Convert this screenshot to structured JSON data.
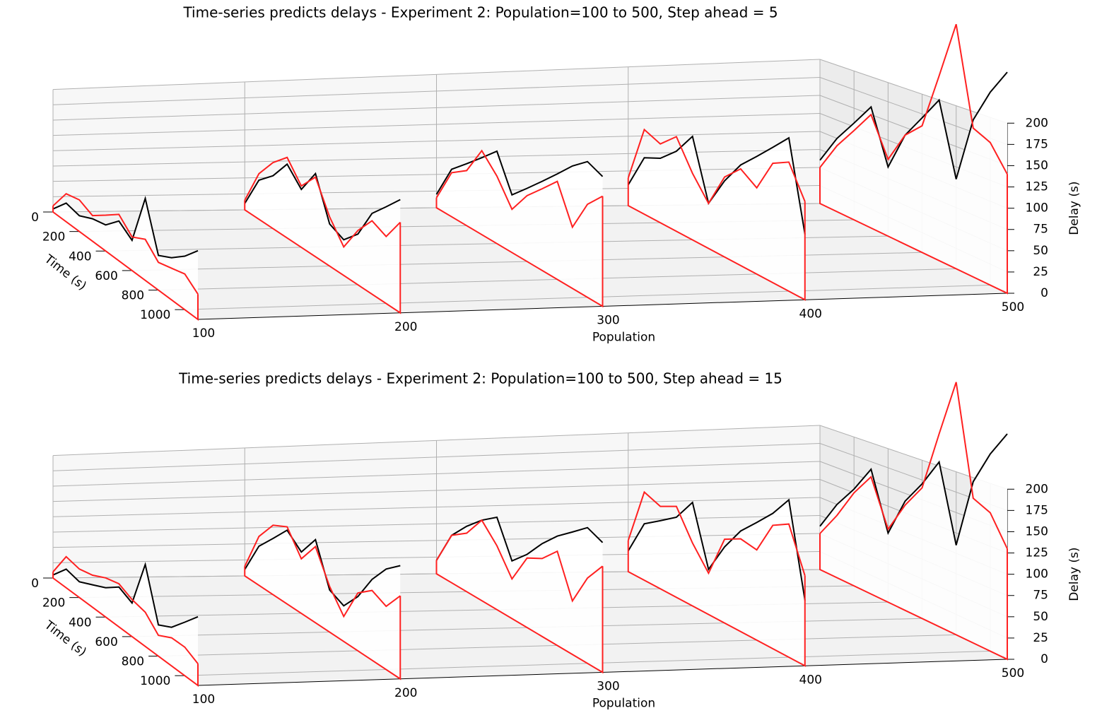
{
  "chart_data": [
    {
      "type": "line3d",
      "title": "Time-series predicts delays - Experiment 2: Population=100 to 500, Step ahead = 5",
      "xlabel": "Population",
      "ylabel": "Time (s)",
      "zlabel": "Delay (s)",
      "xlim": [
        100,
        500
      ],
      "ylim": [
        0,
        1100
      ],
      "zlim": [
        0,
        200
      ],
      "xticks": [
        100,
        200,
        300,
        400,
        500
      ],
      "yticks": [
        0,
        200,
        400,
        600,
        800,
        1000
      ],
      "zticks": [
        0,
        25,
        50,
        75,
        100,
        125,
        150,
        175,
        200
      ],
      "grid": true,
      "x": [
        0,
        100,
        200,
        300,
        400,
        500,
        600,
        700,
        800,
        900,
        1000,
        1100
      ],
      "series": [
        {
          "population": 100,
          "color": "#000000",
          "values": [
            5,
            30,
            25,
            35,
            40,
            60,
            45,
            120,
            50,
            60,
            75,
            95
          ]
        },
        {
          "population": 100,
          "color": "#ff2020",
          "values": [
            10,
            45,
            50,
            40,
            55,
            70,
            50,
            60,
            40,
            45,
            50,
            35
          ]
        },
        {
          "population": 200,
          "color": "#000000",
          "values": [
            10,
            60,
            80,
            110,
            85,
            120,
            60,
            50,
            70,
            110,
            130,
            150
          ]
        },
        {
          "population": 200,
          "color": "#ff2020",
          "values": [
            15,
            70,
            100,
            120,
            90,
            115,
            70,
            40,
            75,
            100,
            90,
            120
          ]
        },
        {
          "population": 300,
          "color": "#000000",
          "values": [
            20,
            70,
            90,
            110,
            130,
            80,
            100,
            120,
            140,
            160,
            175,
            165
          ]
        },
        {
          "population": 300,
          "color": "#ff2020",
          "values": [
            15,
            65,
            80,
            120,
            95,
            60,
            90,
            110,
            130,
            80,
            120,
            140
          ]
        },
        {
          "population": 400,
          "color": "#000000",
          "values": [
            30,
            80,
            90,
            110,
            140,
            60,
            100,
            130,
            150,
            170,
            190,
            80
          ]
        },
        {
          "population": 400,
          "color": "#ff2020",
          "values": [
            40,
            120,
            110,
            130,
            90,
            60,
            105,
            125,
            110,
            150,
            160,
            120
          ]
        },
        {
          "population": 500,
          "color": "#000000",
          "values": [
            60,
            100,
            130,
            160,
            90,
            140,
            170,
            200,
            110,
            190,
            230,
            260
          ]
        },
        {
          "population": 500,
          "color": "#ff2020",
          "values": [
            50,
            90,
            120,
            150,
            100,
            140,
            160,
            230,
            300,
            180,
            170,
            140
          ]
        }
      ]
    },
    {
      "type": "line3d",
      "title": "Time-series predicts delays - Experiment 2: Population=100 to 500, Step ahead = 15",
      "xlabel": "Population",
      "ylabel": "Time (s)",
      "zlabel": "Delay (s)",
      "xlim": [
        100,
        500
      ],
      "ylim": [
        0,
        1100
      ],
      "zlim": [
        0,
        200
      ],
      "xticks": [
        100,
        200,
        300,
        400,
        500
      ],
      "yticks": [
        0,
        200,
        400,
        600,
        800,
        1000
      ],
      "zticks": [
        0,
        25,
        50,
        75,
        100,
        125,
        150,
        175,
        200
      ],
      "grid": true,
      "x": [
        0,
        100,
        200,
        300,
        400,
        500,
        600,
        700,
        800,
        900,
        1000,
        1100
      ],
      "series": [
        {
          "population": 100,
          "color": "#000000",
          "values": [
            5,
            30,
            25,
            35,
            45,
            60,
            50,
            120,
            45,
            55,
            75,
            95
          ]
        },
        {
          "population": 100,
          "color": "#ff2020",
          "values": [
            10,
            50,
            45,
            50,
            60,
            65,
            55,
            50,
            30,
            40,
            40,
            30
          ]
        },
        {
          "population": 200,
          "color": "#000000",
          "values": [
            10,
            60,
            85,
            110,
            90,
            120,
            60,
            50,
            75,
            110,
            135,
            150
          ]
        },
        {
          "population": 200,
          "color": "#ff2020",
          "values": [
            15,
            75,
            105,
            115,
            80,
            110,
            65,
            35,
            80,
            95,
            85,
            110
          ]
        },
        {
          "population": 300,
          "color": "#000000",
          "values": [
            20,
            70,
            95,
            115,
            130,
            80,
            100,
            125,
            145,
            160,
            175,
            165
          ]
        },
        {
          "population": 300,
          "color": "#ff2020",
          "values": [
            20,
            70,
            85,
            115,
            90,
            55,
            95,
            105,
            125,
            70,
            110,
            135
          ]
        },
        {
          "population": 400,
          "color": "#000000",
          "values": [
            30,
            80,
            95,
            110,
            140,
            60,
            100,
            130,
            150,
            170,
            195,
            80
          ]
        },
        {
          "population": 400,
          "color": "#ff2020",
          "values": [
            45,
            125,
            115,
            125,
            85,
            55,
            110,
            120,
            115,
            155,
            165,
            110
          ]
        },
        {
          "population": 500,
          "color": "#000000",
          "values": [
            60,
            100,
            130,
            165,
            90,
            140,
            170,
            205,
            110,
            195,
            235,
            265
          ]
        },
        {
          "population": 500,
          "color": "#ff2020",
          "values": [
            50,
            85,
            125,
            155,
            95,
            135,
            165,
            240,
            310,
            175,
            165,
            130
          ]
        }
      ]
    }
  ]
}
